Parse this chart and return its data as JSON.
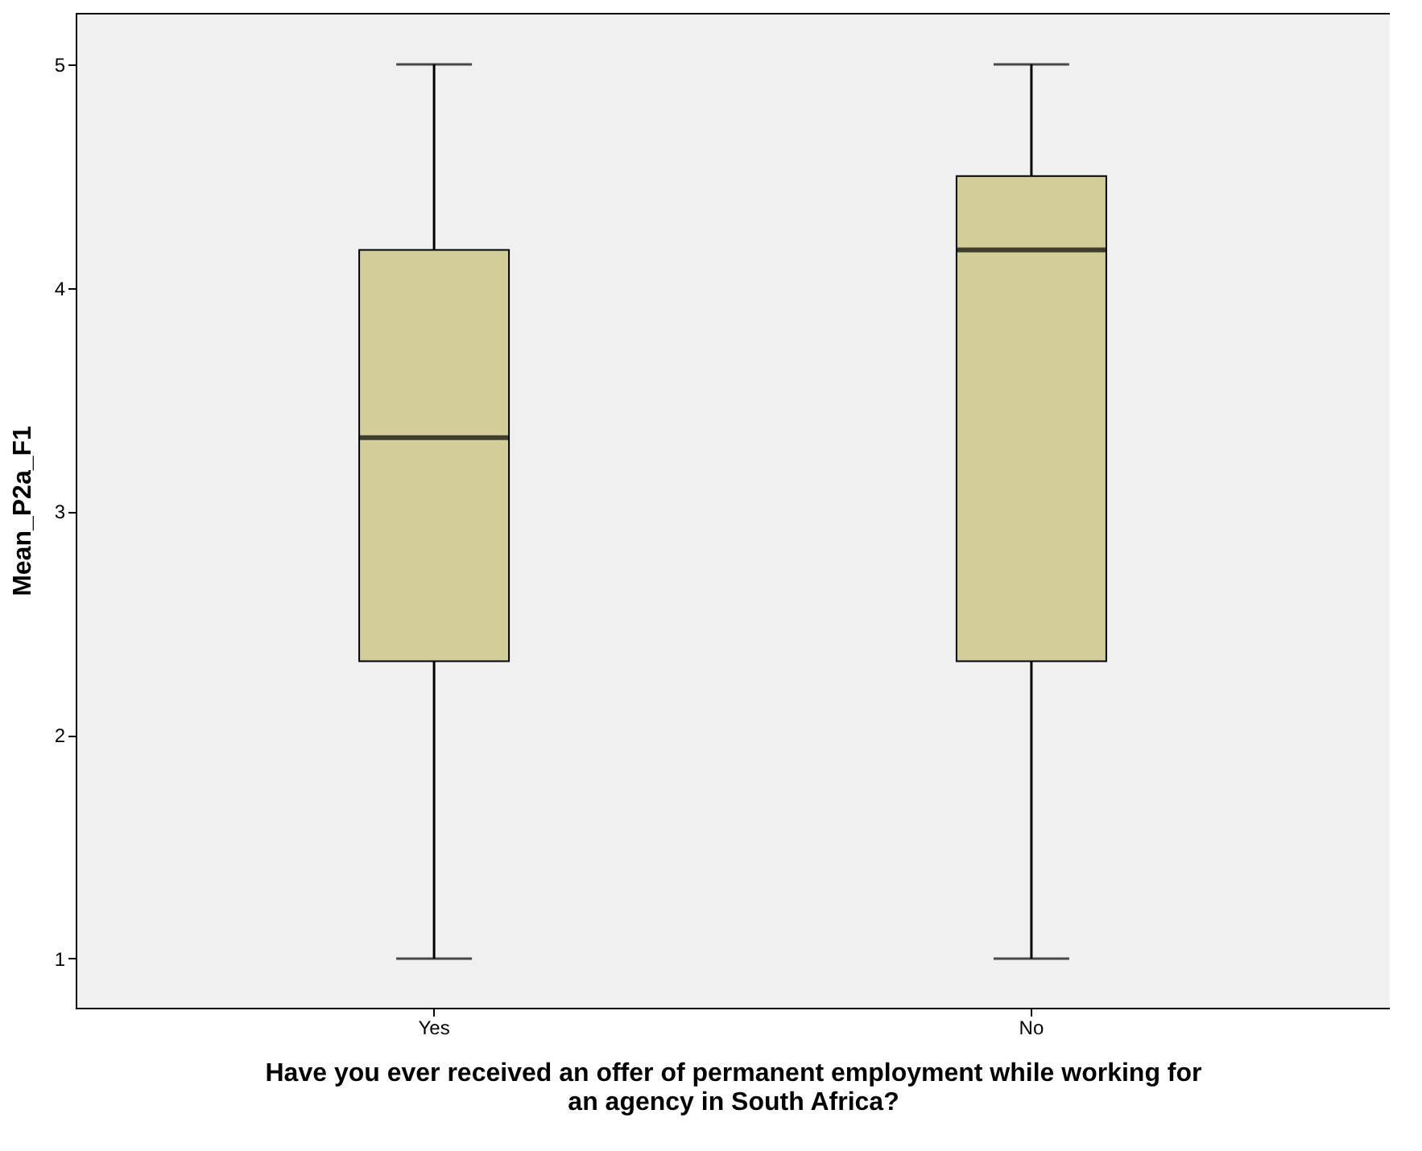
{
  "chart_data": {
    "type": "box",
    "xlabel": "Have you ever received an offer of permanent employment while working for\nan agency in South Africa?",
    "ylabel": "Mean_P2a_F1",
    "categories": [
      "Yes",
      "No"
    ],
    "boxes": [
      {
        "low": 1,
        "q1": 2.33,
        "median": 3.33,
        "q3": 4.17,
        "high": 5
      },
      {
        "low": 1,
        "q1": 2.33,
        "median": 4.17,
        "q3": 4.5,
        "high": 5
      }
    ],
    "color": "#d3ce97",
    "ylim": [
      0.78,
      5.23
    ],
    "yticks": [
      1,
      2,
      3,
      4,
      5
    ]
  }
}
